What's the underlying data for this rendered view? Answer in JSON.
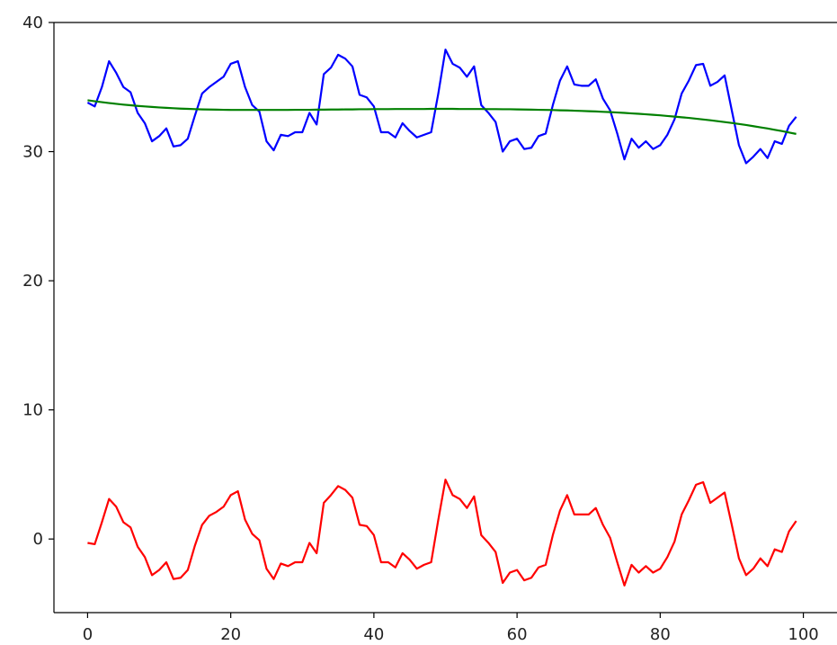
{
  "chart_data": {
    "type": "line",
    "title": "",
    "xlabel": "",
    "ylabel": "",
    "xlim": [
      -4.7,
      104.7
    ],
    "ylim": [
      -5.7,
      40
    ],
    "grid": false,
    "x_ticks": [
      0,
      20,
      40,
      60,
      80,
      100
    ],
    "y_ticks": [
      0,
      10,
      20,
      30,
      40
    ],
    "x_tick_labels": [
      "0",
      "20",
      "40",
      "60",
      "80",
      "100"
    ],
    "y_tick_labels": [
      "0",
      "10",
      "20",
      "30",
      "40"
    ],
    "series": [
      {
        "color": "#0000ff",
        "values": [
          33.8,
          33.5,
          35.0,
          37.0,
          36.1,
          35.0,
          34.6,
          33.0,
          32.2,
          30.8,
          31.2,
          31.8,
          30.4,
          30.5,
          31.0,
          32.8,
          34.5,
          35.0,
          35.4,
          35.8,
          36.8,
          37.0,
          35.0,
          33.6,
          33.1,
          30.8,
          30.1,
          31.3,
          31.2,
          31.5,
          31.5,
          33.0,
          32.1,
          36.0,
          36.5,
          37.5,
          37.2,
          36.6,
          34.4,
          34.2,
          33.5,
          31.5,
          31.5,
          31.1,
          32.2,
          31.6,
          31.1,
          31.3,
          31.5,
          34.5,
          37.9,
          36.8,
          36.5,
          35.8,
          36.6,
          33.6,
          33.0,
          32.3,
          30.0,
          30.8,
          31.0,
          30.2,
          30.3,
          31.2,
          31.4,
          33.6,
          35.5,
          36.6,
          35.2,
          35.1,
          35.1,
          35.6,
          34.1,
          33.2,
          31.4,
          29.4,
          31.0,
          30.3,
          30.8,
          30.2,
          30.5,
          31.3,
          32.5,
          34.5,
          35.5,
          36.7,
          36.8,
          35.1,
          35.4,
          35.9,
          33.2,
          30.5,
          29.1,
          29.6,
          30.2,
          29.5,
          30.8,
          30.6,
          32.0,
          32.7
        ]
      },
      {
        "color": "#ff0000",
        "values": [
          -0.3,
          -0.4,
          1.3,
          3.1,
          2.5,
          1.3,
          0.9,
          -0.6,
          -1.4,
          -2.8,
          -2.4,
          -1.8,
          -3.1,
          -3.0,
          -2.4,
          -0.5,
          1.1,
          1.8,
          2.1,
          2.5,
          3.4,
          3.7,
          1.5,
          0.4,
          -0.1,
          -2.3,
          -3.1,
          -1.9,
          -2.1,
          -1.8,
          -1.8,
          -0.3,
          -1.1,
          2.8,
          3.4,
          4.1,
          3.8,
          3.2,
          1.1,
          1.0,
          0.3,
          -1.8,
          -1.8,
          -2.2,
          -1.1,
          -1.6,
          -2.3,
          -2.0,
          -1.8,
          1.5,
          4.6,
          3.4,
          3.1,
          2.4,
          3.3,
          0.3,
          -0.3,
          -1.0,
          -3.4,
          -2.6,
          -2.4,
          -3.2,
          -3.0,
          -2.2,
          -2.0,
          0.3,
          2.2,
          3.4,
          1.9,
          1.9,
          1.9,
          2.4,
          1.1,
          0.1,
          -1.8,
          -3.6,
          -2.0,
          -2.6,
          -2.1,
          -2.6,
          -2.3,
          -1.4,
          -0.2,
          1.9,
          3.0,
          4.2,
          4.4,
          2.8,
          3.2,
          3.6,
          1.1,
          -1.5,
          -2.8,
          -2.3,
          -1.5,
          -2.1,
          -0.8,
          -1.0,
          0.6,
          1.4
        ]
      },
      {
        "color": "#008000",
        "values": [
          33.98,
          33.9,
          33.83,
          33.76,
          33.7,
          33.64,
          33.59,
          33.54,
          33.5,
          33.46,
          33.42,
          33.39,
          33.36,
          33.33,
          33.31,
          33.29,
          33.27,
          33.26,
          33.25,
          33.24,
          33.23,
          33.23,
          33.23,
          33.23,
          33.23,
          33.23,
          33.23,
          33.23,
          33.23,
          33.24,
          33.24,
          33.24,
          33.25,
          33.25,
          33.26,
          33.26,
          33.27,
          33.27,
          33.28,
          33.28,
          33.29,
          33.29,
          33.29,
          33.3,
          33.3,
          33.3,
          33.3,
          33.3,
          33.31,
          33.31,
          33.31,
          33.31,
          33.3,
          33.3,
          33.3,
          33.3,
          33.29,
          33.29,
          33.28,
          33.28,
          33.27,
          33.26,
          33.25,
          33.24,
          33.23,
          33.22,
          33.2,
          33.19,
          33.17,
          33.15,
          33.13,
          33.11,
          33.08,
          33.06,
          33.03,
          33.0,
          32.96,
          32.93,
          32.89,
          32.85,
          32.81,
          32.76,
          32.71,
          32.66,
          32.61,
          32.55,
          32.49,
          32.43,
          32.36,
          32.29,
          32.22,
          32.14,
          32.06,
          31.97,
          31.88,
          31.79,
          31.69,
          31.59,
          31.48,
          31.37
        ]
      }
    ]
  }
}
